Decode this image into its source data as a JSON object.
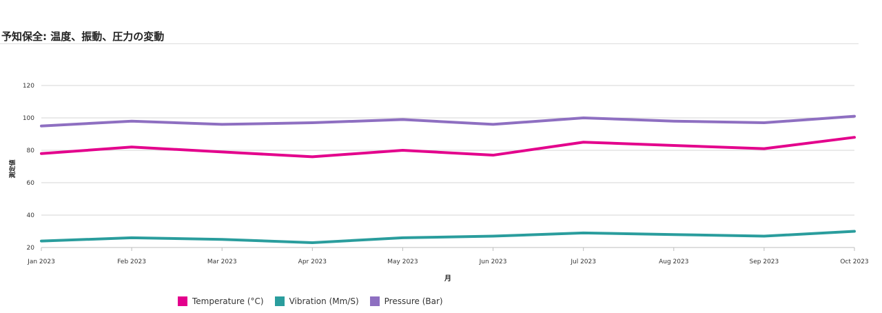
{
  "title": "予知保全: 温度、振動、圧力の変動",
  "chart_data": {
    "type": "line",
    "title": "予知保全: 温度、振動、圧力の変動",
    "xlabel": "月",
    "ylabel": "測定値",
    "categories": [
      "Jan 2023",
      "Feb 2023",
      "Mar 2023",
      "Apr 2023",
      "May 2023",
      "Jun 2023",
      "Jul 2023",
      "Aug 2023",
      "Sep 2023",
      "Oct 2023"
    ],
    "ylim": [
      20,
      120
    ],
    "yticks": [
      20,
      40,
      60,
      80,
      100,
      120
    ],
    "grid": true,
    "legend_position": "bottom",
    "series": [
      {
        "name": "Temperature (°C)",
        "color": "#e3008c",
        "values": [
          78,
          82,
          79,
          76,
          80,
          77,
          85,
          83,
          81,
          88
        ]
      },
      {
        "name": "Vibration (Mm/S)",
        "color": "#2a9d9d",
        "values": [
          24,
          26,
          25,
          23,
          26,
          27,
          29,
          28,
          27,
          30
        ]
      },
      {
        "name": "Pressure (Bar)",
        "color": "#8e6fc1",
        "values": [
          95,
          98,
          96,
          97,
          99,
          96,
          100,
          98,
          97,
          101
        ]
      }
    ]
  }
}
